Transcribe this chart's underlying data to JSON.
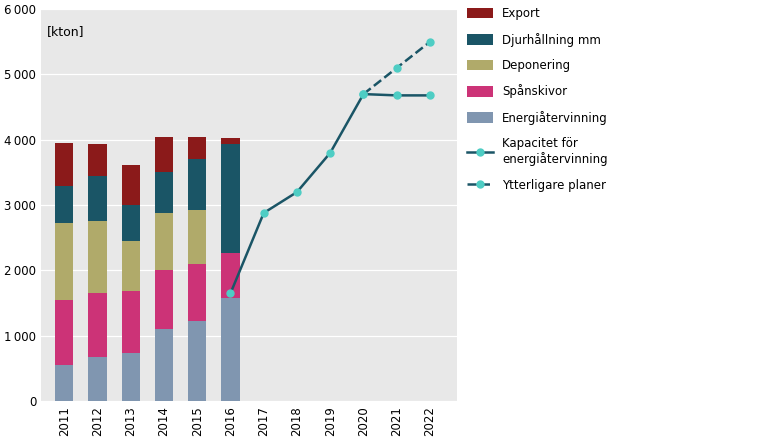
{
  "bar_years": [
    2011,
    2012,
    2013,
    2014,
    2015,
    2016
  ],
  "bar_data": {
    "Energiatervinning": [
      550,
      680,
      730,
      1100,
      1230,
      1580
    ],
    "Spanskivor": [
      1000,
      980,
      950,
      900,
      870,
      680
    ],
    "Deponering": [
      1180,
      1100,
      770,
      880,
      820,
      0
    ],
    "Djurhallning": [
      570,
      680,
      550,
      620,
      780,
      1680
    ],
    "Export": [
      650,
      490,
      620,
      550,
      350,
      90
    ]
  },
  "bar_colors": {
    "Energiatervinning": "#8096b0",
    "Spanskivor": "#cc3377",
    "Deponering": "#b0aa6a",
    "Djurhallning": "#1a5566",
    "Export": "#8b1a1a"
  },
  "line_solid_years": [
    2016,
    2017,
    2018,
    2019,
    2020,
    2021,
    2022
  ],
  "line_solid_values": [
    1650,
    2880,
    3200,
    3800,
    4700,
    4680,
    4680
  ],
  "line_dashed_years": [
    2020,
    2021,
    2022
  ],
  "line_dashed_values": [
    4700,
    5100,
    5500
  ],
  "line_color": "#1a5566",
  "line_marker_color": "#4ecdc4",
  "ylim": [
    0,
    6000
  ],
  "yticks": [
    0,
    1000,
    2000,
    3000,
    4000,
    5000,
    6000
  ],
  "kton_label": "[kton]",
  "plot_bg": "#e8e8e8",
  "fig_bg": "#ffffff",
  "bar_width": 0.55
}
